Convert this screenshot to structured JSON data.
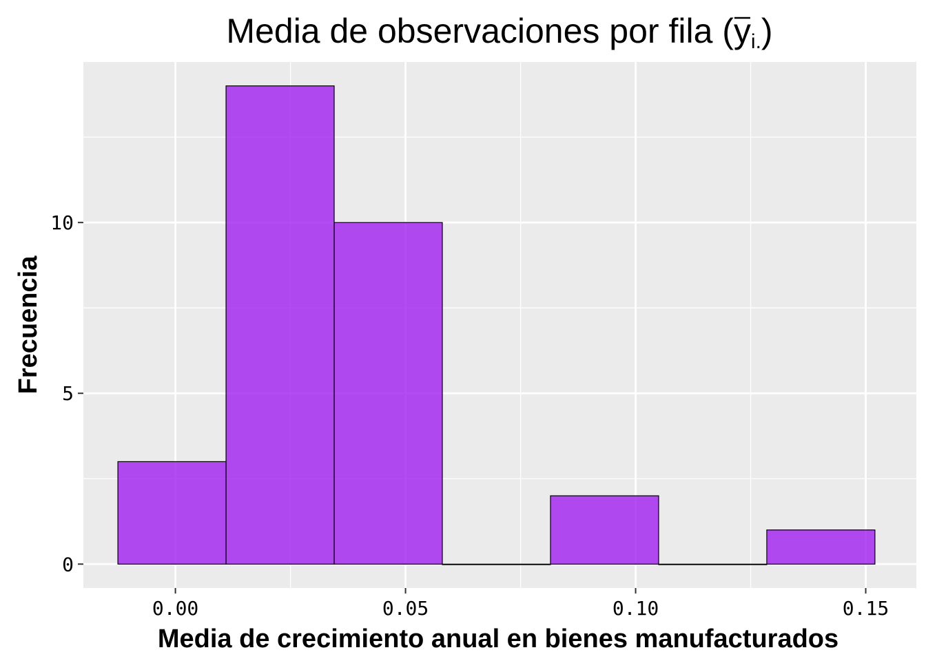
{
  "chart_data": {
    "type": "bar",
    "subtype": "histogram",
    "title": "Media de observaciones por fila (",
    "title_math": {
      "variable": "y",
      "subscript": "i."
    },
    "title_suffix": ")",
    "xlabel": "Media de crecimiento anual en bienes manufacturados",
    "ylabel": "Frecuencia",
    "bins": [
      {
        "start": -0.0125,
        "end": 0.011,
        "count": 3
      },
      {
        "start": 0.011,
        "end": 0.0345,
        "count": 14
      },
      {
        "start": 0.0345,
        "end": 0.058,
        "count": 10
      },
      {
        "start": 0.058,
        "end": 0.0815,
        "count": 0
      },
      {
        "start": 0.0815,
        "end": 0.105,
        "count": 2
      },
      {
        "start": 0.105,
        "end": 0.1285,
        "count": 0
      },
      {
        "start": 0.1285,
        "end": 0.152,
        "count": 1
      }
    ],
    "xlim": [
      -0.02,
      0.161
    ],
    "ylim": [
      -0.7,
      14.7
    ],
    "x_ticks": [
      0.0,
      0.05,
      0.1,
      0.15
    ],
    "x_tick_labels": [
      "0.00",
      "0.05",
      "0.10",
      "0.15"
    ],
    "x_minor_ticks": [
      0.025,
      0.075,
      0.125
    ],
    "y_ticks": [
      0,
      5,
      10
    ],
    "y_tick_labels": [
      "0",
      "5",
      "10"
    ],
    "y_minor_ticks": [
      2.5,
      7.5,
      12.5
    ],
    "grid": true,
    "legend": "none",
    "colors": {
      "bar_fill": "#A020F0",
      "bar_fill_opacity": 0.8,
      "bar_stroke": "#000000",
      "panel_background": "#EBEBEB",
      "grid": "#FFFFFF"
    }
  }
}
